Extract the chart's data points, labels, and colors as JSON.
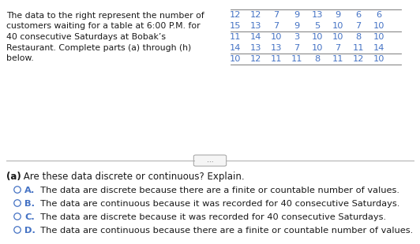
{
  "description_lines": [
    "The data to the right represent the number of",
    "customers waiting for a table at 6:00 P.M. for",
    "40 consecutive Saturdays at Bobak’s",
    "Restaurant. Complete parts (a) through (h)",
    "below."
  ],
  "table_rows": [
    [
      "12",
      "12",
      "7",
      "9",
      "13",
      "9",
      "6",
      "6"
    ],
    [
      "15",
      "13",
      "7",
      "9",
      "5",
      "10",
      "7",
      "10"
    ],
    [
      "11",
      "14",
      "10",
      "3",
      "10",
      "10",
      "8",
      "10"
    ],
    [
      "14",
      "13",
      "13",
      "7",
      "10",
      "7",
      "11",
      "14"
    ],
    [
      "10",
      "12",
      "11",
      "11",
      "8",
      "11",
      "12",
      "10"
    ]
  ],
  "question_label": "(a)",
  "question_text": " Are these data discrete or continuous? Explain.",
  "options": [
    {
      "letter": "A.",
      "text": "  The data are discrete because there are a finite or countable number of values."
    },
    {
      "letter": "B.",
      "text": "  The data are continuous because it was recorded for 40 consecutive Saturdays."
    },
    {
      "letter": "C.",
      "text": "  The data are discrete because it was recorded for 40 consecutive Saturdays."
    },
    {
      "letter": "D.",
      "text": "  The data are continuous because there are a finite or countable number of values."
    }
  ],
  "divider_button_text": "...",
  "text_color": "#1a1a1a",
  "blue_color": "#4472C4",
  "bg_color": "#ffffff",
  "desc_fontsize": 7.8,
  "table_fontsize": 8.2,
  "question_fontsize": 8.5,
  "option_fontsize": 8.2,
  "option_letter_fontsize": 8.2
}
